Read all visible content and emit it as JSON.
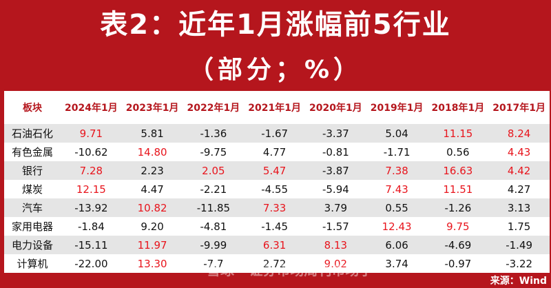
{
  "title": {
    "line1": "表2：近年1月涨幅前5行业",
    "line2": "（部分；%）"
  },
  "table": {
    "headers": [
      "板块",
      "2024年1月",
      "2023年1月",
      "2022年1月",
      "2021年1月",
      "2020年1月",
      "2019年1月",
      "2018年1月",
      "2017年1月"
    ],
    "rows": [
      {
        "name": "石油石化",
        "values": [
          "9.71",
          "5.81",
          "-1.36",
          "-1.67",
          "-3.37",
          "5.04",
          "11.15",
          "8.24"
        ],
        "highlight": [
          1,
          0,
          0,
          0,
          0,
          0,
          1,
          1
        ]
      },
      {
        "name": "有色金属",
        "values": [
          "-10.62",
          "14.80",
          "-9.75",
          "4.77",
          "-0.81",
          "-1.71",
          "0.56",
          "4.43"
        ],
        "highlight": [
          0,
          1,
          0,
          0,
          0,
          0,
          0,
          1
        ]
      },
      {
        "name": "银行",
        "values": [
          "7.28",
          "2.23",
          "2.05",
          "5.47",
          "-3.87",
          "7.38",
          "16.63",
          "4.42"
        ],
        "highlight": [
          1,
          0,
          1,
          1,
          0,
          1,
          1,
          1
        ]
      },
      {
        "name": "煤炭",
        "values": [
          "12.15",
          "4.47",
          "-2.21",
          "-4.55",
          "-5.94",
          "7.43",
          "11.51",
          "4.27"
        ],
        "highlight": [
          1,
          0,
          0,
          0,
          0,
          1,
          1,
          0
        ]
      },
      {
        "name": "汽车",
        "values": [
          "-13.92",
          "10.82",
          "-11.85",
          "7.33",
          "3.79",
          "0.55",
          "-1.26",
          "3.13"
        ],
        "highlight": [
          0,
          1,
          0,
          1,
          0,
          0,
          0,
          0
        ]
      },
      {
        "name": "家用电器",
        "values": [
          "-1.84",
          "9.20",
          "-4.81",
          "-1.45",
          "-1.57",
          "12.43",
          "9.75",
          "1.75"
        ],
        "highlight": [
          0,
          0,
          0,
          0,
          0,
          1,
          1,
          0
        ]
      },
      {
        "name": "电力设备",
        "values": [
          "-15.11",
          "11.97",
          "-9.99",
          "6.31",
          "8.13",
          "6.06",
          "-4.69",
          "-1.49"
        ],
        "highlight": [
          0,
          1,
          0,
          1,
          1,
          0,
          0,
          0
        ]
      },
      {
        "name": "计算机",
        "values": [
          "-22.00",
          "13.30",
          "-7.7",
          "2.72",
          "9.02",
          "3.74",
          "-0.97",
          "-3.22"
        ],
        "highlight": [
          0,
          1,
          0,
          0,
          1,
          0,
          0,
          0
        ]
      }
    ]
  },
  "colors": {
    "frame": "#b5161d",
    "highlight": "#e8141c",
    "header_text": "#b5161d"
  },
  "footer": {
    "source": "来源：Wind"
  },
  "watermark": "雪球 · 证券市场周刊市场学"
}
